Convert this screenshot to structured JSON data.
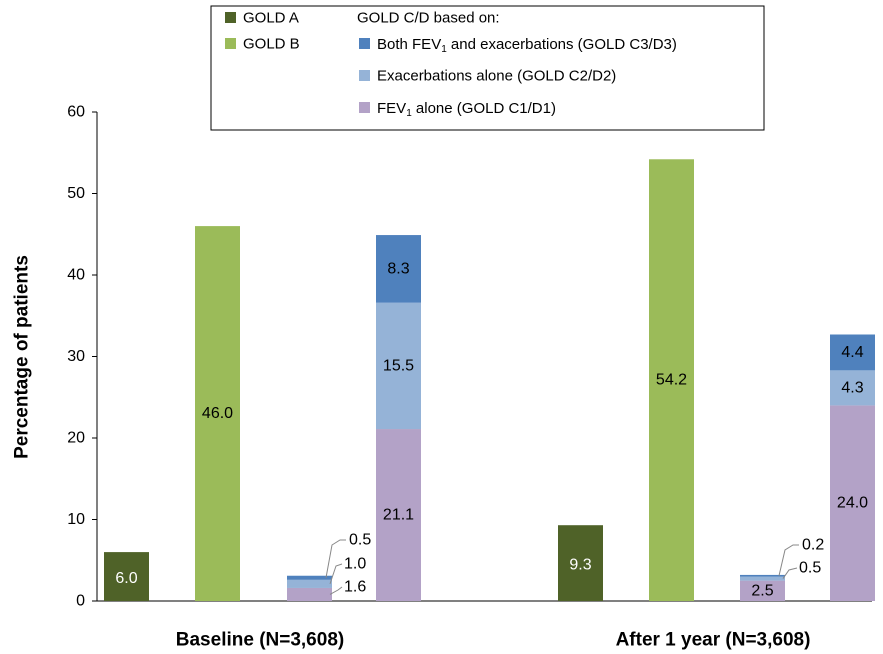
{
  "chart_data": {
    "type": "bar",
    "ylabel": "Percentage of patients",
    "ylim": [
      0,
      60
    ],
    "yticks": [
      "0",
      "10",
      "20",
      "30",
      "40",
      "50",
      "60"
    ],
    "grid": false,
    "legend_position": "top",
    "colors": {
      "gold_a": "#4f6228",
      "gold_b": "#9bbb59",
      "cd_both": "#4f81bd",
      "cd_exac": "#95b3d7",
      "cd_fev": "#b3a2c7"
    },
    "legend": {
      "gold_a": "GOLD A",
      "gold_b": "GOLD B",
      "cd_header": "GOLD C/D based on:",
      "cd_both": {
        "pre": "Both FEV",
        "sub": "1",
        "post": " and exacerbations (GOLD C3/D3)"
      },
      "cd_exac": "Exacerbations alone (GOLD C2/D2)",
      "cd_fev": {
        "pre": "FEV",
        "sub": "1",
        "post": " alone (GOLD C1/D1)"
      }
    },
    "groups": [
      {
        "label": "Baseline (N=3,608)",
        "gold_a": 6.0,
        "gold_a_label": "6.0",
        "gold_b": 46.0,
        "gold_b_label": "46.0",
        "gold_cd_small": {
          "fev": 1.6,
          "exac": 1.0,
          "both": 0.5,
          "fev_label": "1.6",
          "exac_label": "1.0",
          "both_label": "0.5"
        },
        "gold_cd_large": {
          "fev": 21.1,
          "exac": 15.5,
          "both": 8.3,
          "fev_label": "21.1",
          "exac_label": "15.5",
          "both_label": "8.3"
        }
      },
      {
        "label": "After 1 year (N=3,608)",
        "gold_a": 9.3,
        "gold_a_label": "9.3",
        "gold_b": 54.2,
        "gold_b_label": "54.2",
        "gold_cd_small": {
          "fev": 2.5,
          "exac": 0.5,
          "both": 0.2,
          "fev_label": "2.5",
          "exac_label": "0.5",
          "both_label": "0.2"
        },
        "gold_cd_large": {
          "fev": 24.0,
          "exac": 4.3,
          "both": 4.4,
          "fev_label": "24.0",
          "exac_label": "4.3",
          "both_label": "4.4"
        }
      }
    ]
  }
}
